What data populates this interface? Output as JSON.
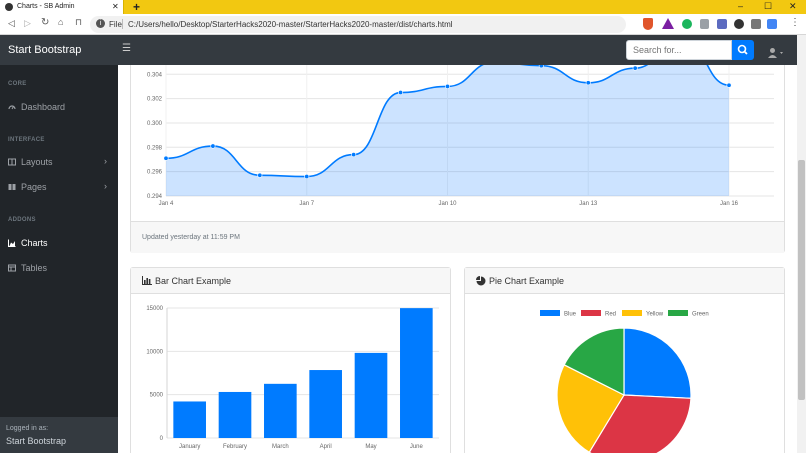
{
  "browser": {
    "tab_title": "Charts - SB Admin",
    "new_tab": "+",
    "address_prefix": "File",
    "url": "C:/Users/hello/Desktop/StarterHacks2020-master/StarterHacks2020-master/dist/charts.html"
  },
  "topnav": {
    "brand": "Start Bootstrap",
    "search_placeholder": "Search for..."
  },
  "sidebar": {
    "sections": [
      {
        "heading": "CORE",
        "items": [
          {
            "label": "Dashboard",
            "icon": "dashboard-icon"
          }
        ]
      },
      {
        "heading": "INTERFACE",
        "items": [
          {
            "label": "Layouts",
            "icon": "columns-icon"
          },
          {
            "label": "Pages",
            "icon": "book-icon"
          }
        ]
      },
      {
        "heading": "ADDONS",
        "items": [
          {
            "label": "Charts",
            "icon": "area-chart-icon"
          },
          {
            "label": "Tables",
            "icon": "table-icon"
          }
        ]
      }
    ],
    "footer_label": "Logged in as:",
    "footer_user": "Start Bootstrap"
  },
  "area_card": {
    "footer": "Updated yesterday at 11:59 PM"
  },
  "bar_card": {
    "title": "Bar Chart Example"
  },
  "pie_card": {
    "title": "Pie Chart Example"
  },
  "colors": {
    "blue": "#007bff",
    "red": "#dc3545",
    "yellow": "#ffc107",
    "green": "#28a745",
    "nav_dark": "#343a40",
    "side_dark": "#212529"
  },
  "chart_data": [
    {
      "type": "area",
      "x_tick_labels": [
        "Jan 4",
        "Jan 7",
        "Jan 10",
        "Jan 13",
        "Jan 16"
      ],
      "y_tick_labels": [
        "0.294",
        "0.296",
        "0.298",
        "0.300",
        "0.302",
        "0.304"
      ],
      "x": [
        "Jan 4",
        "Jan 5",
        "Jan 6",
        "Jan 7",
        "Jan 8",
        "Jan 9",
        "Jan 10",
        "Jan 11",
        "Jan 12",
        "Jan 13",
        "Jan 14",
        "Jan 15",
        "Jan 16"
      ],
      "values": [
        0.2971,
        0.2981,
        0.2957,
        0.2956,
        0.2974,
        0.3025,
        0.303,
        0.305,
        0.3047,
        0.3033,
        0.3045,
        0.307,
        0.3031
      ],
      "ylim": [
        0.294,
        0.3055
      ],
      "grid": true,
      "color": "#007bff"
    },
    {
      "type": "bar",
      "categories": [
        "January",
        "February",
        "March",
        "April",
        "May",
        "June"
      ],
      "values": [
        4215,
        5312,
        6251,
        7841,
        9821,
        14984
      ],
      "y_tick_labels": [
        "0",
        "5000",
        "10000",
        "15000"
      ],
      "ylim": [
        0,
        15000
      ],
      "grid": true,
      "color": "#007bff"
    },
    {
      "type": "pie",
      "legend": [
        "Blue",
        "Red",
        "Yellow",
        "Green"
      ],
      "values": [
        12.21,
        15.58,
        11.25,
        8.32
      ],
      "colors": [
        "#007bff",
        "#dc3545",
        "#ffc107",
        "#28a745"
      ],
      "legend_position": "top"
    }
  ]
}
